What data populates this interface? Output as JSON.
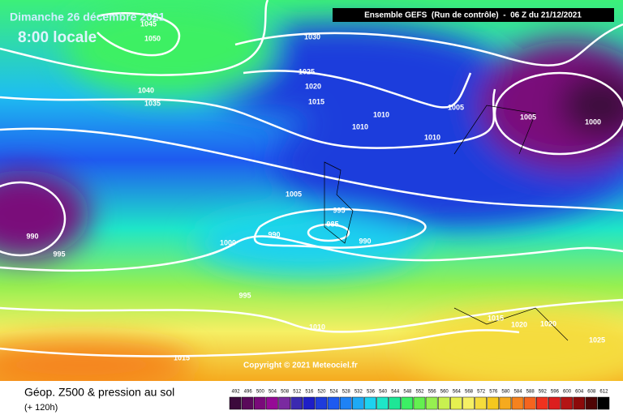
{
  "header": {
    "title": "Dimanche 26 décembre 2021",
    "subtitle": "8:00 locale",
    "run": "Ensemble GEFS  (Run de contrôle)  -  06 Z du 21/12/2021"
  },
  "isobar_labels": [
    "1045",
    "1050",
    "1040",
    "1035",
    "1030",
    "1025",
    "1020",
    "1015",
    "1010",
    "1010",
    "1005",
    "1005",
    "1000",
    "1010",
    "1005",
    "995",
    "985",
    "990",
    "990",
    "990",
    "995",
    "1000",
    "995",
    "1010",
    "1015",
    "1020",
    "1020",
    "1025",
    "1015"
  ],
  "copyright": "Copyright © 2021 Meteociel.fr",
  "footer": {
    "title": "Géop. Z500 & pression au sol",
    "subtitle": "(+ 120h)"
  },
  "scale": {
    "labels": [
      "492",
      "496",
      "500",
      "504",
      "508",
      "512",
      "516",
      "520",
      "524",
      "528",
      "532",
      "536",
      "540",
      "544",
      "548",
      "552",
      "556",
      "560",
      "564",
      "568",
      "572",
      "576",
      "580",
      "584",
      "588",
      "592",
      "596",
      "600",
      "604",
      "608",
      "612"
    ],
    "colors": [
      "#3c0a3c",
      "#5a0a5a",
      "#7a0a7a",
      "#960a96",
      "#7a2aa0",
      "#3a2ab0",
      "#1e1ec8",
      "#1e3cdc",
      "#1e5af0",
      "#1e82f5",
      "#1eaaf5",
      "#1ed2f0",
      "#1ee6c8",
      "#1ee696",
      "#3cf064",
      "#64f050",
      "#96f050",
      "#c8f050",
      "#e6f050",
      "#f5f064",
      "#f5dc3c",
      "#f5c81e",
      "#f5aa1e",
      "#f5821e",
      "#f5641e",
      "#f0321e",
      "#dc1e1e",
      "#b41414",
      "#8c0a0a",
      "#500505",
      "#000000"
    ]
  }
}
